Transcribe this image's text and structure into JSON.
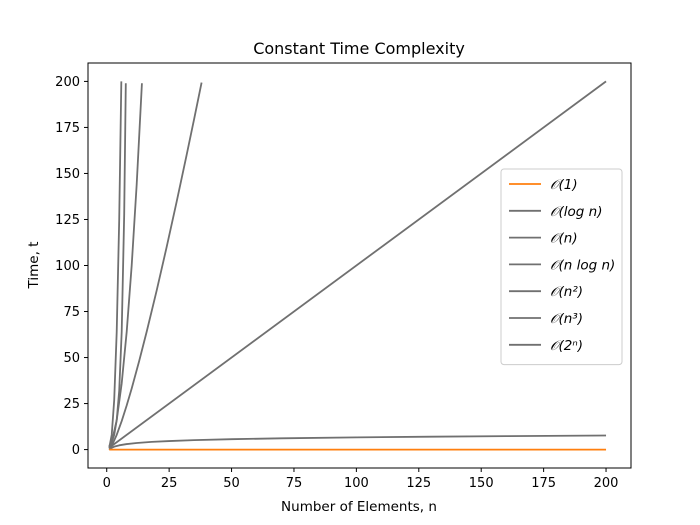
{
  "chart_data": {
    "type": "line",
    "title": "Constant Time Complexity",
    "xlabel": "Number of Elements, n",
    "ylabel": "Time, t",
    "xlim": [
      -7.5,
      210
    ],
    "ylim": [
      -10,
      210
    ],
    "xticks": [
      0,
      25,
      50,
      75,
      100,
      125,
      150,
      175,
      200
    ],
    "yticks": [
      0,
      25,
      50,
      75,
      100,
      125,
      150,
      175,
      200
    ],
    "grid": false,
    "legend_position": "center-right",
    "series": [
      {
        "name": "𝒪(1)",
        "color": "#ff7f0e",
        "x": [
          1,
          200
        ],
        "y": [
          0,
          0
        ]
      },
      {
        "name": "𝒪(log n)",
        "color": "#707070",
        "x": [
          1,
          2,
          3,
          5,
          8,
          12,
          18,
          25,
          35,
          50,
          70,
          100,
          130,
          160,
          200
        ],
        "y": [
          0,
          1,
          1.58,
          2.32,
          3,
          3.58,
          4.17,
          4.64,
          5.13,
          5.64,
          6.13,
          6.64,
          7.02,
          7.32,
          7.64
        ]
      },
      {
        "name": "𝒪(n)",
        "color": "#707070",
        "x": [
          1,
          200
        ],
        "y": [
          1,
          200
        ]
      },
      {
        "name": "𝒪(n log n)",
        "color": "#707070",
        "x": [
          1,
          2,
          4,
          6,
          8,
          10,
          13,
          16,
          20,
          24,
          28,
          32,
          35,
          38
        ],
        "y": [
          0,
          2,
          8,
          15.5,
          24,
          33.2,
          48.1,
          64,
          86.4,
          110,
          134.6,
          160,
          179.5,
          199.4
        ]
      },
      {
        "name": "𝒪(n²)",
        "color": "#707070",
        "x": [
          1,
          2,
          4,
          6,
          8,
          10,
          12,
          14.1
        ],
        "y": [
          1,
          4,
          16,
          36,
          64,
          100,
          144,
          199
        ]
      },
      {
        "name": "𝒪(n³)",
        "color": "#707070",
        "x": [
          1,
          2,
          3,
          4,
          5,
          5.85
        ],
        "y": [
          1,
          8,
          27,
          64,
          125,
          200
        ]
      },
      {
        "name": "𝒪(2ⁿ)",
        "color": "#707070",
        "x": [
          1,
          2,
          3,
          4,
          5,
          6,
          7,
          7.64
        ],
        "y": [
          2,
          4,
          8,
          16,
          32,
          64,
          128,
          199
        ]
      }
    ]
  }
}
